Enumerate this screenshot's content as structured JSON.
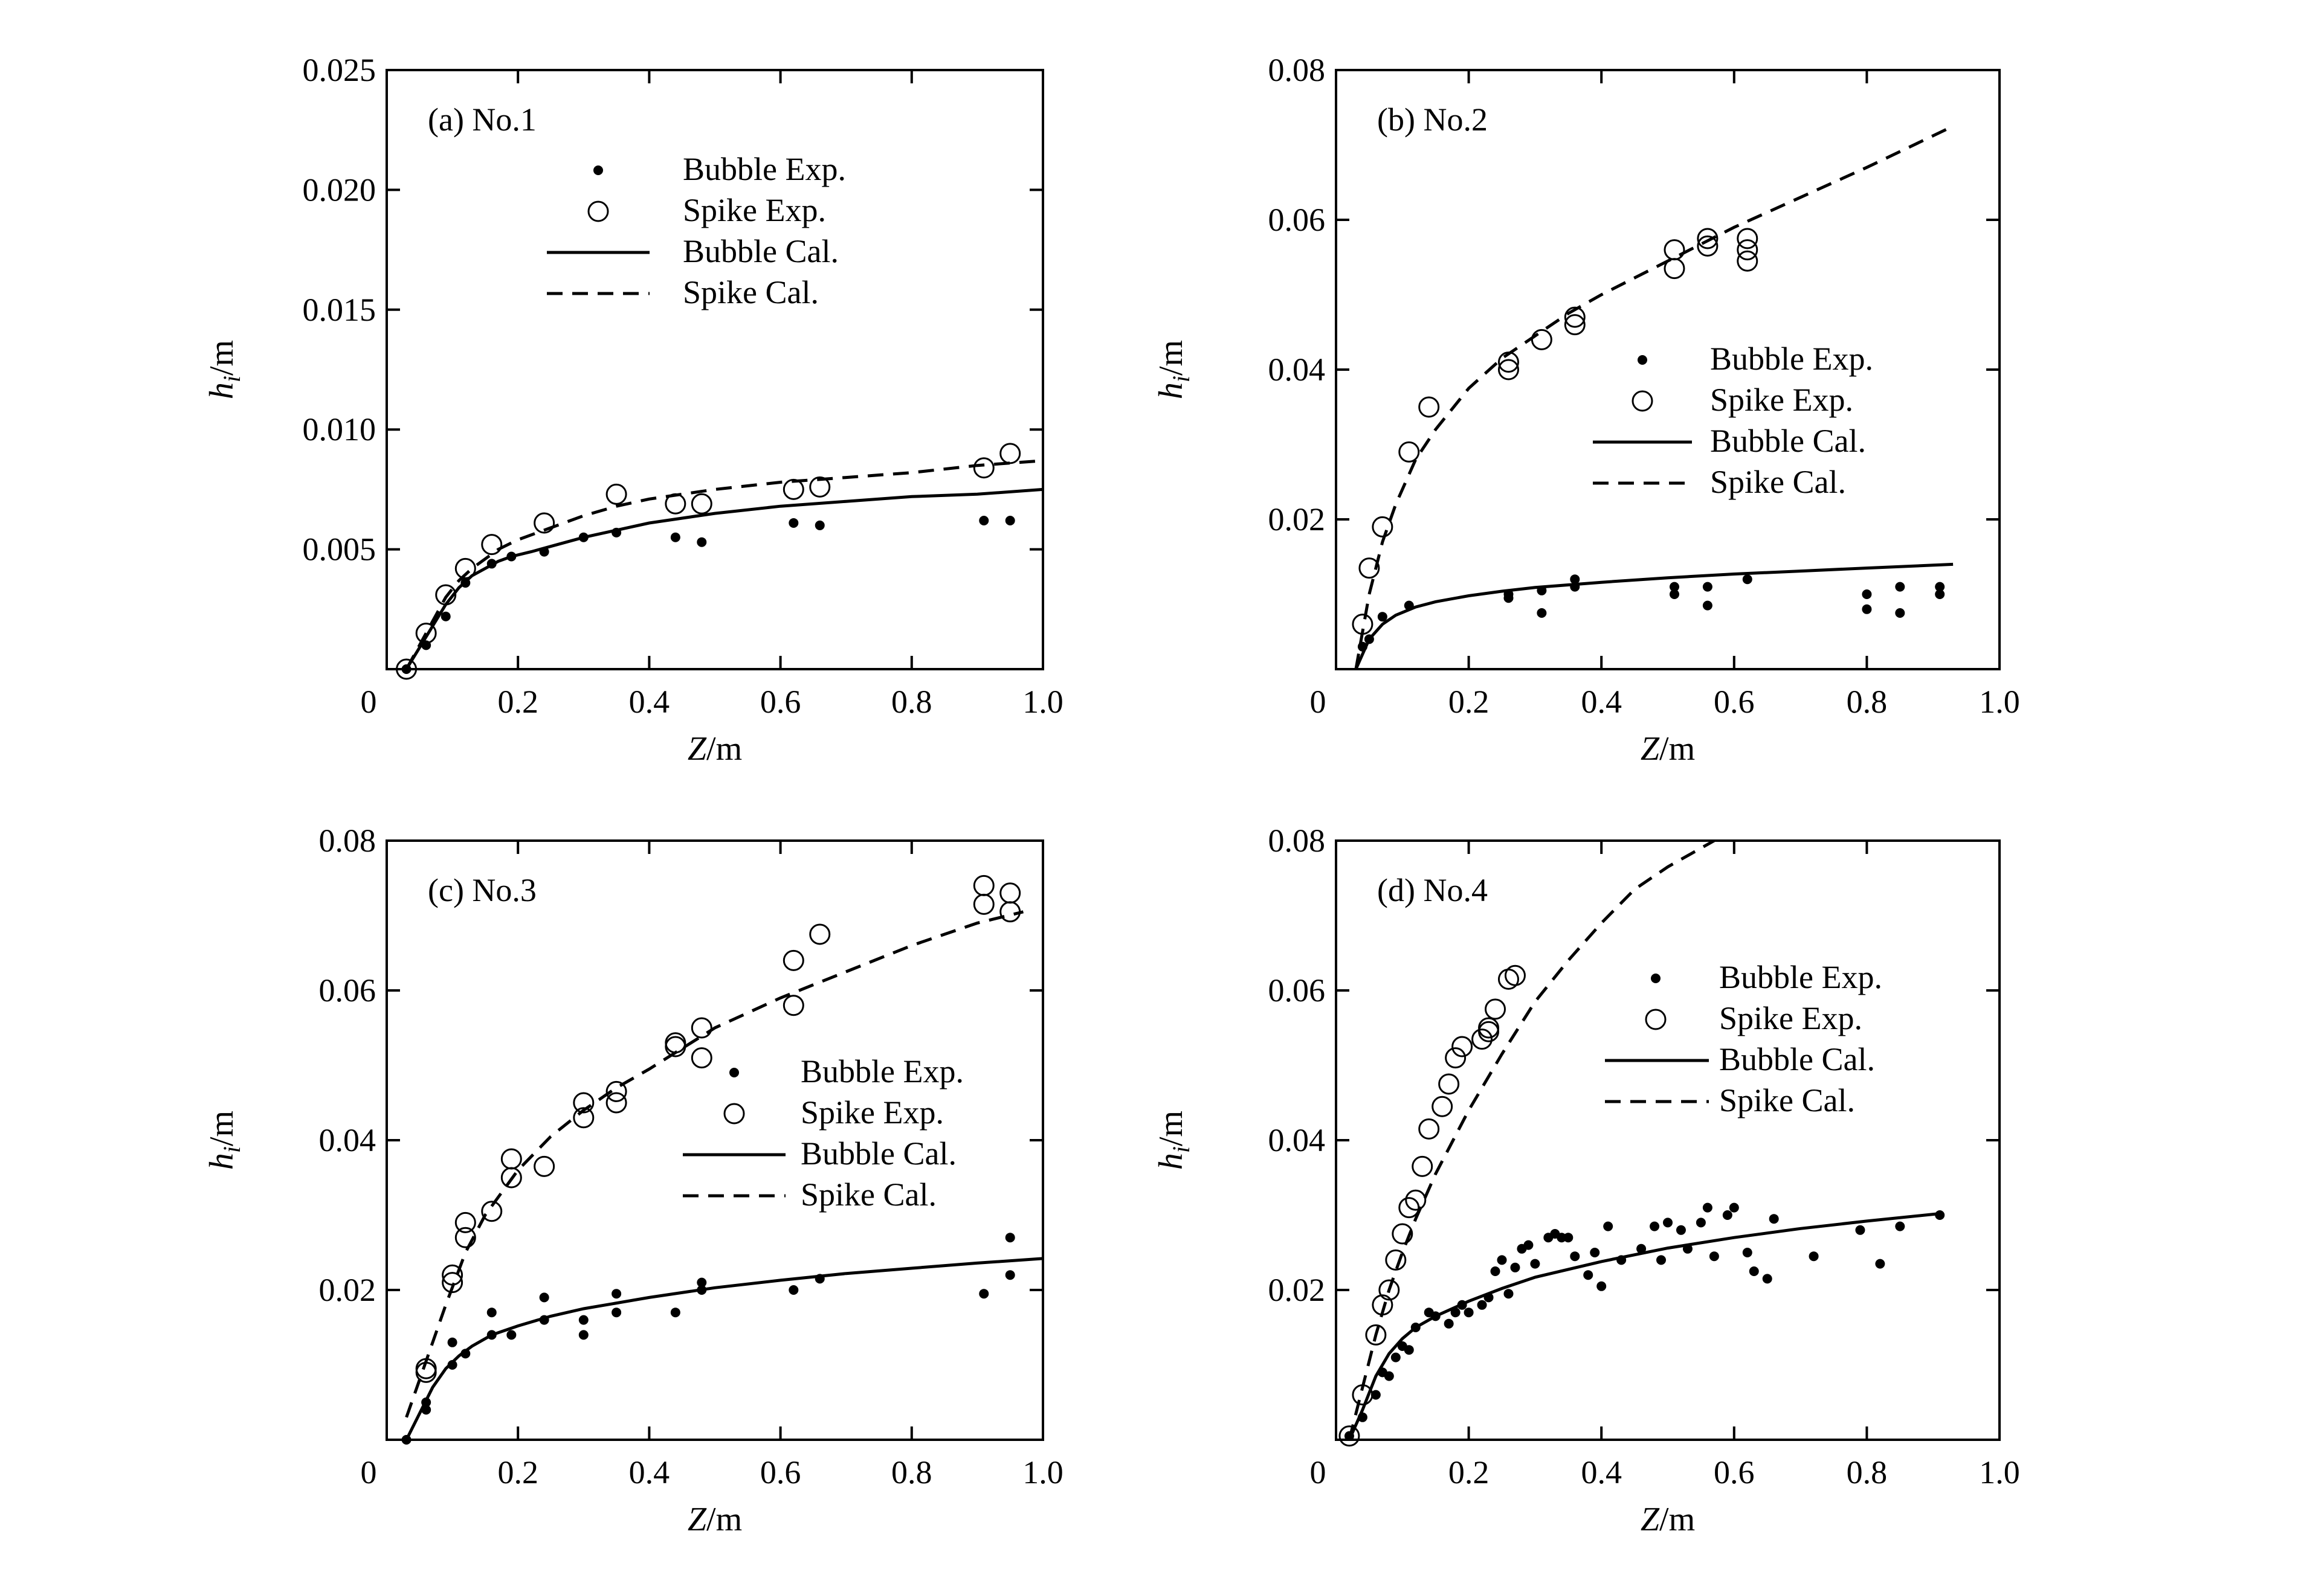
{
  "chart_data": [
    {
      "type": "scatter",
      "panel_label": "(a) No.1",
      "xlabel": "Z/m",
      "ylabel": "hi/m",
      "xlim": [
        0,
        1.0
      ],
      "ylim": [
        0,
        0.025
      ],
      "x_ticks": [
        "0",
        "0.2",
        "0.4",
        "0.6",
        "0.8",
        "1.0"
      ],
      "y_ticks": [
        "0.005",
        "0.010",
        "0.015",
        "0.020",
        "0.025"
      ],
      "legend_position": "upper-center",
      "legend": [
        "Bubble Exp.",
        "Spike Exp.",
        "Bubble Cal.",
        "Spike Cal."
      ],
      "series": [
        {
          "name": "Bubble Exp.",
          "style": "filled-dot",
          "x": [
            0.03,
            0.06,
            0.09,
            0.12,
            0.16,
            0.19,
            0.24,
            0.3,
            0.35,
            0.44,
            0.48,
            0.62,
            0.66,
            0.91,
            0.95
          ],
          "y": [
            0.0,
            0.001,
            0.0022,
            0.0036,
            0.0044,
            0.0047,
            0.0049,
            0.0055,
            0.0057,
            0.0055,
            0.0053,
            0.0061,
            0.006,
            0.0062,
            0.0062
          ]
        },
        {
          "name": "Spike Exp.",
          "style": "open-circle",
          "x": [
            0.03,
            0.06,
            0.09,
            0.12,
            0.16,
            0.24,
            0.35,
            0.44,
            0.48,
            0.62,
            0.66,
            0.91,
            0.95
          ],
          "y": [
            0.0,
            0.0015,
            0.0031,
            0.0042,
            0.0052,
            0.0061,
            0.0073,
            0.0069,
            0.0069,
            0.0075,
            0.0076,
            0.0084,
            0.009
          ]
        },
        {
          "name": "Bubble Cal.",
          "style": "solid-line",
          "x": [
            0.03,
            0.05,
            0.07,
            0.09,
            0.11,
            0.13,
            0.15,
            0.17,
            0.19,
            0.22,
            0.26,
            0.3,
            0.35,
            0.4,
            0.5,
            0.6,
            0.7,
            0.8,
            0.9,
            1.0
          ],
          "y": [
            0.0,
            0.0009,
            0.0018,
            0.0027,
            0.0034,
            0.0039,
            0.0042,
            0.0045,
            0.0047,
            0.0049,
            0.0052,
            0.0055,
            0.0058,
            0.0061,
            0.0065,
            0.0068,
            0.007,
            0.0072,
            0.0073,
            0.0075
          ]
        },
        {
          "name": "Spike Cal.",
          "style": "dashed-line",
          "x": [
            0.03,
            0.05,
            0.07,
            0.09,
            0.11,
            0.13,
            0.15,
            0.17,
            0.2,
            0.25,
            0.3,
            0.35,
            0.4,
            0.5,
            0.6,
            0.7,
            0.8,
            0.9,
            1.0
          ],
          "y": [
            0.0,
            0.001,
            0.002,
            0.003,
            0.0037,
            0.0042,
            0.0046,
            0.005,
            0.0054,
            0.0059,
            0.0064,
            0.0068,
            0.0071,
            0.0075,
            0.0078,
            0.008,
            0.0082,
            0.0085,
            0.0087
          ]
        }
      ]
    },
    {
      "type": "scatter",
      "panel_label": "(b) No.2",
      "xlabel": "Z/m",
      "ylabel": "hi/m",
      "xlim": [
        0,
        1.0
      ],
      "ylim": [
        0,
        0.08
      ],
      "x_ticks": [
        "0",
        "0.2",
        "0.4",
        "0.6",
        "0.8",
        "1.0"
      ],
      "y_ticks": [
        "0.02",
        "0.04",
        "0.06",
        "0.08"
      ],
      "legend_position": "center-right",
      "legend": [
        "Bubble Exp.",
        "Spike Exp.",
        "Bubble Cal.",
        "Spike Cal."
      ],
      "series": [
        {
          "name": "Bubble Exp.",
          "style": "filled-dot",
          "x": [
            0.04,
            0.05,
            0.07,
            0.11,
            0.26,
            0.26,
            0.31,
            0.31,
            0.36,
            0.36,
            0.51,
            0.51,
            0.56,
            0.56,
            0.62,
            0.8,
            0.8,
            0.85,
            0.85,
            0.91,
            0.91
          ],
          "y": [
            0.003,
            0.004,
            0.007,
            0.0085,
            0.01,
            0.0095,
            0.0105,
            0.0075,
            0.012,
            0.011,
            0.011,
            0.01,
            0.011,
            0.0085,
            0.012,
            0.01,
            0.008,
            0.011,
            0.0075,
            0.011,
            0.01
          ]
        },
        {
          "name": "Spike Exp.",
          "style": "open-circle",
          "x": [
            0.04,
            0.05,
            0.07,
            0.11,
            0.14,
            0.26,
            0.26,
            0.31,
            0.36,
            0.36,
            0.51,
            0.51,
            0.56,
            0.56,
            0.62,
            0.62,
            0.62
          ],
          "y": [
            0.006,
            0.0135,
            0.019,
            0.029,
            0.035,
            0.041,
            0.04,
            0.044,
            0.047,
            0.046,
            0.056,
            0.0535,
            0.0575,
            0.0565,
            0.0575,
            0.056,
            0.0545
          ]
        },
        {
          "name": "Bubble Cal.",
          "style": "solid-line",
          "x": [
            0.03,
            0.05,
            0.07,
            0.09,
            0.12,
            0.15,
            0.2,
            0.25,
            0.3,
            0.4,
            0.5,
            0.6,
            0.7,
            0.8,
            0.93
          ],
          "y": [
            0.0,
            0.004,
            0.006,
            0.0072,
            0.0083,
            0.009,
            0.0098,
            0.0104,
            0.0109,
            0.0116,
            0.0122,
            0.0127,
            0.0131,
            0.0135,
            0.014
          ]
        },
        {
          "name": "Spike Cal.",
          "style": "dashed-line",
          "x": [
            0.03,
            0.05,
            0.07,
            0.09,
            0.12,
            0.15,
            0.2,
            0.25,
            0.3,
            0.35,
            0.4,
            0.5,
            0.6,
            0.7,
            0.8,
            0.93
          ],
          "y": [
            0.0,
            0.01,
            0.017,
            0.022,
            0.028,
            0.032,
            0.0375,
            0.0415,
            0.0445,
            0.0475,
            0.05,
            0.0545,
            0.059,
            0.063,
            0.067,
            0.0725
          ]
        }
      ]
    },
    {
      "type": "scatter",
      "panel_label": "(c) No.3",
      "xlabel": "Z/m",
      "ylabel": "hi/m",
      "xlim": [
        0,
        1.0
      ],
      "ylim": [
        0,
        0.08
      ],
      "x_ticks": [
        "0",
        "0.2",
        "0.4",
        "0.6",
        "0.8",
        "1.0"
      ],
      "y_ticks": [
        "0.02",
        "0.04",
        "0.06",
        "0.08"
      ],
      "legend_position": "center-right",
      "legend": [
        "Bubble Exp.",
        "Spike Exp.",
        "Bubble Cal.",
        "Spike Cal."
      ],
      "series": [
        {
          "name": "Bubble Exp.",
          "style": "filled-dot",
          "x": [
            0.03,
            0.06,
            0.06,
            0.1,
            0.1,
            0.12,
            0.16,
            0.16,
            0.19,
            0.24,
            0.24,
            0.3,
            0.3,
            0.35,
            0.35,
            0.44,
            0.48,
            0.48,
            0.62,
            0.66,
            0.91,
            0.95,
            0.95
          ],
          "y": [
            0.0,
            0.004,
            0.005,
            0.013,
            0.01,
            0.0115,
            0.017,
            0.014,
            0.014,
            0.019,
            0.016,
            0.016,
            0.014,
            0.0195,
            0.017,
            0.017,
            0.021,
            0.02,
            0.02,
            0.0215,
            0.0195,
            0.027,
            0.022
          ]
        },
        {
          "name": "Spike Exp.",
          "style": "open-circle",
          "x": [
            0.06,
            0.06,
            0.1,
            0.1,
            0.12,
            0.12,
            0.16,
            0.19,
            0.19,
            0.24,
            0.3,
            0.3,
            0.35,
            0.35,
            0.44,
            0.44,
            0.48,
            0.48,
            0.62,
            0.62,
            0.66,
            0.91,
            0.91,
            0.95,
            0.95
          ],
          "y": [
            0.009,
            0.0095,
            0.022,
            0.021,
            0.029,
            0.027,
            0.0305,
            0.0375,
            0.035,
            0.0365,
            0.045,
            0.043,
            0.0465,
            0.045,
            0.0525,
            0.053,
            0.055,
            0.051,
            0.064,
            0.058,
            0.0675,
            0.074,
            0.0715,
            0.073,
            0.0705
          ]
        },
        {
          "name": "Bubble Cal.",
          "style": "solid-line",
          "x": [
            0.03,
            0.05,
            0.07,
            0.09,
            0.11,
            0.13,
            0.16,
            0.2,
            0.25,
            0.3,
            0.4,
            0.5,
            0.6,
            0.7,
            0.8,
            0.9,
            1.0
          ],
          "y": [
            0.0,
            0.0035,
            0.007,
            0.0095,
            0.0112,
            0.0125,
            0.014,
            0.0152,
            0.0165,
            0.0175,
            0.019,
            0.0203,
            0.0213,
            0.0222,
            0.0229,
            0.0236,
            0.0242
          ]
        },
        {
          "name": "Spike Cal.",
          "style": "dashed-line",
          "x": [
            0.03,
            0.05,
            0.07,
            0.09,
            0.12,
            0.15,
            0.2,
            0.25,
            0.3,
            0.35,
            0.4,
            0.5,
            0.6,
            0.7,
            0.8,
            0.9,
            0.97
          ],
          "y": [
            0.003,
            0.008,
            0.013,
            0.018,
            0.025,
            0.03,
            0.036,
            0.0405,
            0.044,
            0.047,
            0.0495,
            0.055,
            0.059,
            0.0625,
            0.066,
            0.069,
            0.0705
          ]
        }
      ]
    },
    {
      "type": "scatter",
      "panel_label": "(d) No.4",
      "xlabel": "Z/m",
      "ylabel": "hi/m",
      "xlim": [
        0,
        1.0
      ],
      "ylim": [
        0,
        0.08
      ],
      "x_ticks": [
        "0",
        "0.2",
        "0.4",
        "0.6",
        "0.8",
        "1.0"
      ],
      "y_ticks": [
        "0.02",
        "0.04",
        "0.06",
        "0.08"
      ],
      "legend_position": "upper-right",
      "legend": [
        "Bubble Exp.",
        "Spike Exp.",
        "Bubble Cal.",
        "Spike Cal."
      ],
      "series": [
        {
          "name": "Bubble Exp.",
          "style": "filled-dot",
          "x": [
            0.02,
            0.04,
            0.06,
            0.07,
            0.08,
            0.09,
            0.1,
            0.11,
            0.12,
            0.14,
            0.15,
            0.17,
            0.18,
            0.19,
            0.2,
            0.22,
            0.23,
            0.24,
            0.25,
            0.26,
            0.27,
            0.28,
            0.29,
            0.3,
            0.32,
            0.33,
            0.34,
            0.35,
            0.36,
            0.38,
            0.39,
            0.4,
            0.41,
            0.43,
            0.46,
            0.48,
            0.49,
            0.5,
            0.52,
            0.53,
            0.55,
            0.56,
            0.57,
            0.59,
            0.6,
            0.62,
            0.63,
            0.65,
            0.66,
            0.72,
            0.79,
            0.82,
            0.85,
            0.91
          ],
          "y": [
            0.0005,
            0.003,
            0.006,
            0.009,
            0.0085,
            0.011,
            0.0125,
            0.012,
            0.015,
            0.017,
            0.0165,
            0.0155,
            0.017,
            0.018,
            0.017,
            0.018,
            0.019,
            0.0225,
            0.024,
            0.0195,
            0.023,
            0.0255,
            0.026,
            0.0235,
            0.027,
            0.0275,
            0.027,
            0.027,
            0.0245,
            0.022,
            0.025,
            0.0205,
            0.0285,
            0.024,
            0.0255,
            0.0285,
            0.024,
            0.029,
            0.028,
            0.0255,
            0.029,
            0.031,
            0.0245,
            0.03,
            0.031,
            0.025,
            0.0225,
            0.0215,
            0.0295,
            0.0245,
            0.028,
            0.0235,
            0.0285,
            0.03
          ]
        },
        {
          "name": "Spike Exp.",
          "style": "open-circle",
          "x": [
            0.02,
            0.04,
            0.06,
            0.07,
            0.08,
            0.09,
            0.1,
            0.11,
            0.12,
            0.13,
            0.14,
            0.16,
            0.17,
            0.18,
            0.19,
            0.22,
            0.23,
            0.23,
            0.24,
            0.26,
            0.27
          ],
          "y": [
            0.0005,
            0.006,
            0.014,
            0.018,
            0.02,
            0.024,
            0.0275,
            0.031,
            0.032,
            0.0365,
            0.0415,
            0.0445,
            0.0475,
            0.051,
            0.0525,
            0.0535,
            0.055,
            0.0545,
            0.0575,
            0.0615,
            0.062
          ]
        },
        {
          "name": "Bubble Cal.",
          "style": "solid-line",
          "x": [
            0.02,
            0.04,
            0.06,
            0.08,
            0.1,
            0.12,
            0.15,
            0.2,
            0.25,
            0.3,
            0.4,
            0.5,
            0.6,
            0.7,
            0.8,
            0.91
          ],
          "y": [
            0.0,
            0.004,
            0.0085,
            0.0115,
            0.0135,
            0.015,
            0.0165,
            0.0185,
            0.0202,
            0.0217,
            0.0238,
            0.0256,
            0.027,
            0.0282,
            0.0292,
            0.0302
          ]
        },
        {
          "name": "Spike Cal.",
          "style": "dashed-line",
          "x": [
            0.02,
            0.04,
            0.06,
            0.08,
            0.1,
            0.12,
            0.15,
            0.2,
            0.25,
            0.3,
            0.35,
            0.4,
            0.45,
            0.5,
            0.55,
            0.57
          ],
          "y": [
            0.0,
            0.007,
            0.014,
            0.02,
            0.025,
            0.0295,
            0.0355,
            0.044,
            0.0515,
            0.0585,
            0.064,
            0.069,
            0.0735,
            0.0765,
            0.079,
            0.08
          ]
        }
      ]
    }
  ]
}
